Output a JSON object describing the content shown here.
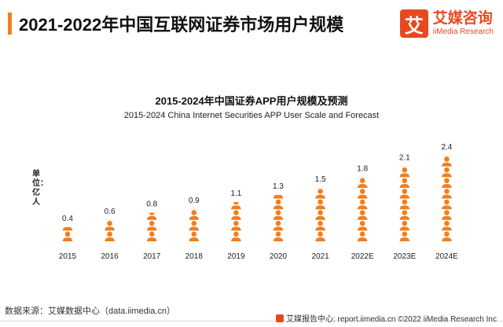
{
  "header": {
    "title": "2021-2022年中国互联网证券市场用户规模"
  },
  "logo": {
    "mark": "艾",
    "name_cn": "艾媒咨询",
    "name_en": "iiMedia Research"
  },
  "chart_data": {
    "type": "bar",
    "title": "2015-2024年中国证券APP用户规模及预测",
    "subtitle": "2015-2024 China Internet Securities APP User Scale and Forecast",
    "ylabel": "单位：亿人",
    "categories": [
      "2015",
      "2016",
      "2017",
      "2018",
      "2019",
      "2020",
      "2021",
      "2022E",
      "2023E",
      "2024E"
    ],
    "values": [
      0.4,
      0.6,
      0.8,
      0.9,
      1.1,
      1.3,
      1.5,
      1.8,
      2.1,
      2.4
    ],
    "value_labels": [
      "0.4",
      "0.6",
      "0.8",
      "0.9",
      "1.1",
      "1.3",
      "1.5",
      "1.8",
      "2.1",
      "2.4"
    ],
    "ylim": [
      0,
      2.4
    ],
    "grid": false,
    "colors": {
      "icon": "#f07f1e"
    }
  },
  "footer": {
    "source": "数据来源：艾媒数据中心（data.iimedia.cn）",
    "copyright": "艾媒报告中心: report.iimedia.cn ©2022 iiMedia Research Inc"
  }
}
